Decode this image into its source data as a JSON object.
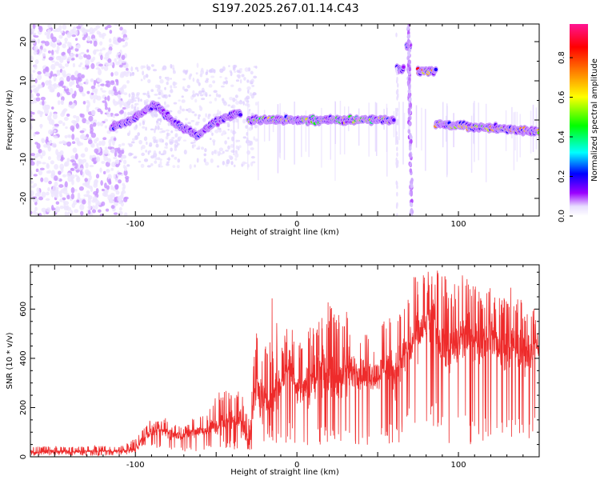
{
  "title": "S197.2025.267.01.14.C43",
  "colors": {
    "snr_line": "#ee2b2b",
    "axis": "#000000"
  },
  "chart_data": [
    {
      "type": "heatmap",
      "title": "S197.2025.267.01.14.C43",
      "xlabel": "Height of straight line (km)",
      "ylabel": "Frequency (Hz)",
      "xlim": [
        -165,
        150
      ],
      "ylim": [
        -24.5,
        24.5
      ],
      "x_ticks": [
        "-100",
        "0",
        "100"
      ],
      "x_tick_values": [
        -100,
        0,
        100
      ],
      "y_ticks": [
        "20",
        "10",
        "0",
        "-10",
        "-20"
      ],
      "y_tick_values": [
        20,
        10,
        0,
        -10,
        -20
      ],
      "colorbar": {
        "label": "Normalized spectral amplitude",
        "range": [
          0,
          0.97
        ],
        "ticks": [
          "0.0",
          "0.2",
          "0.4",
          "0.6",
          "0.8"
        ],
        "tick_values": [
          0.0,
          0.2,
          0.4,
          0.6,
          0.8
        ],
        "colormap": [
          "#ffffff",
          "#d8c6ff",
          "#9b00ff",
          "#0000ff",
          "#00ffff",
          "#00ff00",
          "#ffff00",
          "#ff8000",
          "#ff0000",
          "#ff1493"
        ]
      },
      "ridge_segments": [
        {
          "x_range": [
            -115,
            -35
          ],
          "freq_hz": [
            -2,
            0,
            4,
            -1,
            -4,
            0,
            2
          ],
          "note_amplitude": 0.3
        },
        {
          "x_range": [
            -30,
            60
          ],
          "freq_hz": [
            0,
            0
          ],
          "note_amplitude": 0.7
        },
        {
          "x_range": [
            62,
            66
          ],
          "freq_hz": [
            13,
            13
          ],
          "note_amplitude": 0.6
        },
        {
          "x_range": [
            68,
            70
          ],
          "freq_hz": [
            19,
            19
          ],
          "note_amplitude": 0.4
        },
        {
          "x_range": [
            75,
            86
          ],
          "freq_hz": [
            12.5,
            12.5
          ],
          "note_amplitude": 0.9
        },
        {
          "x_range": [
            86,
            150
          ],
          "freq_hz": [
            -1,
            -3
          ],
          "note_amplitude": 0.8
        }
      ]
    },
    {
      "type": "line",
      "xlabel": "Height of straight line (km)",
      "ylabel": "SNR (10 * v/v)",
      "xlim": [
        -165,
        150
      ],
      "ylim": [
        0,
        780
      ],
      "x_ticks": [
        "-100",
        "0",
        "100"
      ],
      "x_tick_values": [
        -100,
        0,
        100
      ],
      "y_ticks": [
        "0",
        "200",
        "400",
        "600"
      ],
      "y_tick_values": [
        0,
        200,
        400,
        600
      ],
      "x": [
        -165,
        -150,
        -140,
        -130,
        -120,
        -110,
        -100,
        -95,
        -90,
        -85,
        -80,
        -75,
        -70,
        -65,
        -60,
        -55,
        -50,
        -45,
        -40,
        -35,
        -30,
        -25,
        -20,
        -15,
        -10,
        -5,
        0,
        5,
        10,
        15,
        20,
        25,
        30,
        35,
        40,
        45,
        50,
        55,
        60,
        65,
        70,
        75,
        80,
        85,
        90,
        95,
        100,
        105,
        110,
        115,
        120,
        125,
        130,
        135,
        140,
        145,
        150
      ],
      "y": [
        20,
        22,
        20,
        21,
        23,
        22,
        30,
        80,
        100,
        105,
        100,
        90,
        85,
        100,
        105,
        110,
        130,
        140,
        150,
        150,
        60,
        280,
        200,
        250,
        300,
        380,
        280,
        280,
        300,
        350,
        320,
        300,
        350,
        350,
        340,
        330,
        330,
        380,
        330,
        400,
        450,
        500,
        520,
        550,
        450,
        430,
        460,
        500,
        480,
        470,
        500,
        440,
        450,
        440,
        420,
        430,
        440
      ],
      "min_envelope": [
        5,
        5,
        5,
        5,
        5,
        5,
        15,
        40,
        40,
        30,
        30,
        20,
        20,
        20,
        20,
        20,
        30,
        30,
        30,
        30,
        20,
        30,
        40,
        60,
        50,
        40,
        40,
        40,
        40,
        40,
        40,
        40,
        40,
        40,
        40,
        40,
        40,
        40,
        40,
        60,
        100,
        100,
        100,
        80,
        100,
        40,
        50,
        50,
        50,
        50,
        50,
        50,
        50,
        50,
        50,
        50,
        60
      ],
      "max_envelope": [
        40,
        45,
        40,
        45,
        45,
        40,
        75,
        130,
        160,
        140,
        170,
        140,
        120,
        160,
        175,
        190,
        250,
        290,
        270,
        300,
        170,
        530,
        430,
        700,
        440,
        560,
        480,
        480,
        560,
        600,
        640,
        570,
        610,
        550,
        530,
        480,
        490,
        570,
        560,
        620,
        720,
        740,
        760,
        770,
        760,
        680,
        740,
        770,
        700,
        680,
        700,
        660,
        690,
        690,
        650,
        600,
        610
      ]
    }
  ]
}
